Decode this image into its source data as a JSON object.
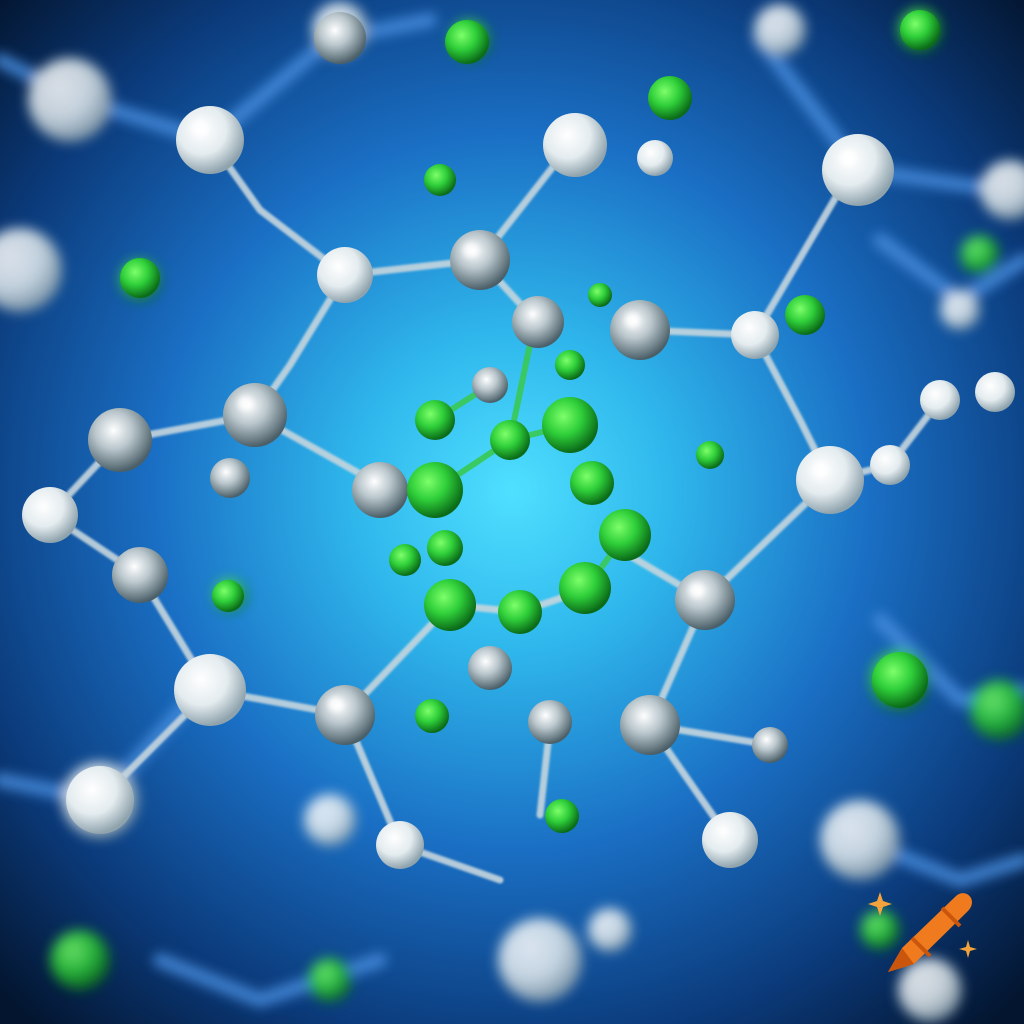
{
  "scene": {
    "subject": "molecule-network",
    "colors": {
      "background_center": "#3ad0f2",
      "background_mid": "#1c7fcf",
      "background_edge": "#031a3a",
      "bond": "#b9c9d2",
      "bond_blue": "#4a8fe0",
      "atom_white": "#f2f6f8",
      "atom_green": "#2fcf3a",
      "atom_green_dark": "#0f7a1c"
    }
  },
  "watermark": {
    "icon": "crayon-icon",
    "color_body": "#f07a1e",
    "color_sparkle": "#f4a23c"
  }
}
